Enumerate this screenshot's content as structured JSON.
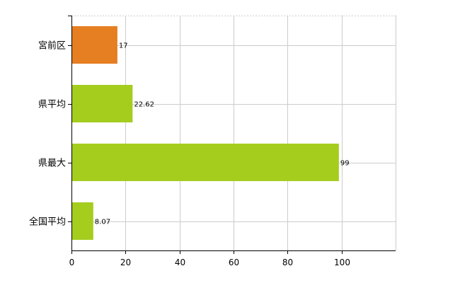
{
  "chart_data": {
    "type": "bar",
    "orientation": "horizontal",
    "categories": [
      "宮前区",
      "県平均",
      "県最大",
      "全国平均"
    ],
    "values": [
      17,
      22.62,
      99,
      8.07
    ],
    "value_labels": [
      "17",
      "22.62",
      "99",
      "8.07"
    ],
    "colors": [
      "#e67e22",
      "#a4cd1e",
      "#a4cd1e",
      "#a4cd1e"
    ],
    "xlim": [
      0,
      120
    ],
    "xticks": [
      0,
      20,
      40,
      60,
      80,
      100
    ],
    "xtick_labels": [
      "0",
      "20",
      "40",
      "60",
      "80",
      "100"
    ],
    "grid": true,
    "gridline_style": "dashed",
    "title": "",
    "xlabel": "",
    "ylabel": ""
  }
}
